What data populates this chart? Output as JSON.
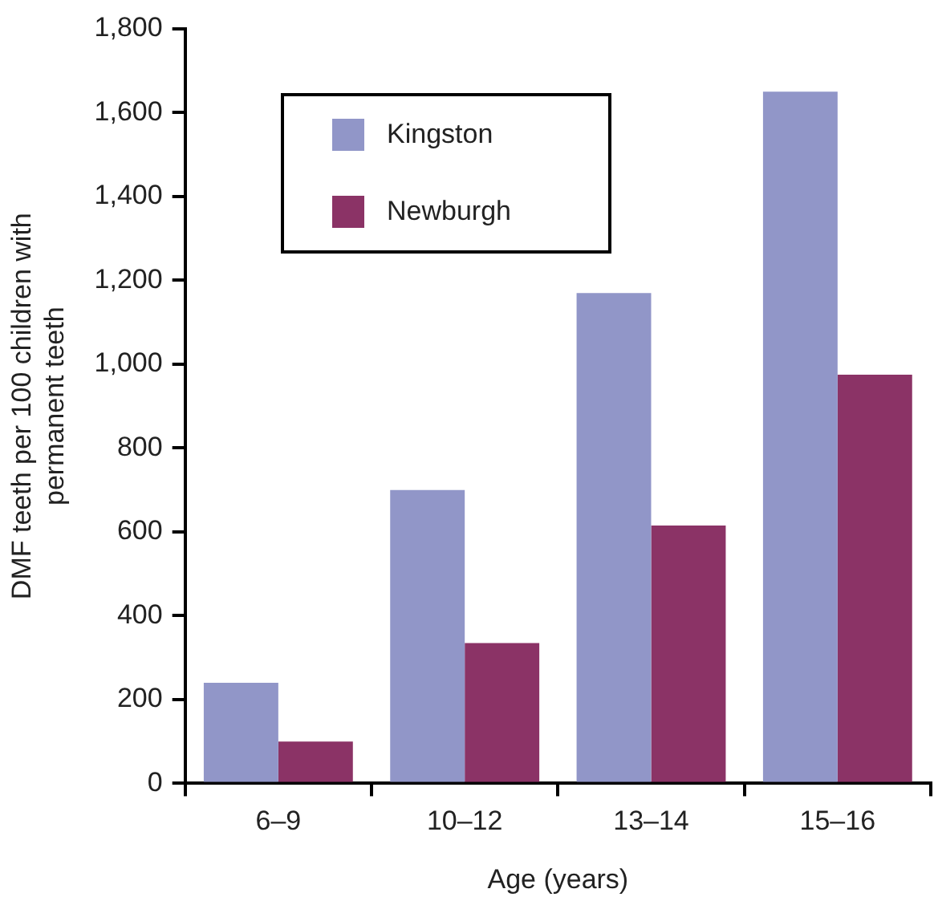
{
  "chart_data": {
    "type": "bar",
    "xlabel": "Age (years)",
    "ylabel": "DMF teeth per 100 children with permanent teeth",
    "categories": [
      "6–9",
      "10–12",
      "13–14",
      "15–16"
    ],
    "series": [
      {
        "name": "Kingston",
        "color": "#9196c8",
        "values": [
          240,
          700,
          1170,
          1650
        ]
      },
      {
        "name": "Newburgh",
        "color": "#8b3366",
        "values": [
          100,
          335,
          615,
          975
        ]
      }
    ],
    "ylim": [
      0,
      1800
    ],
    "yticks": [
      0,
      200,
      400,
      600,
      800,
      {
        "value": 1000,
        "label": "1,000"
      },
      {
        "value": 1200,
        "label": "1,200"
      },
      {
        "value": 1400,
        "label": "1,400"
      },
      {
        "value": 1600,
        "label": "1,600"
      },
      {
        "value": 1800,
        "label": "1,800"
      }
    ],
    "grid": false,
    "legend": "top left"
  }
}
